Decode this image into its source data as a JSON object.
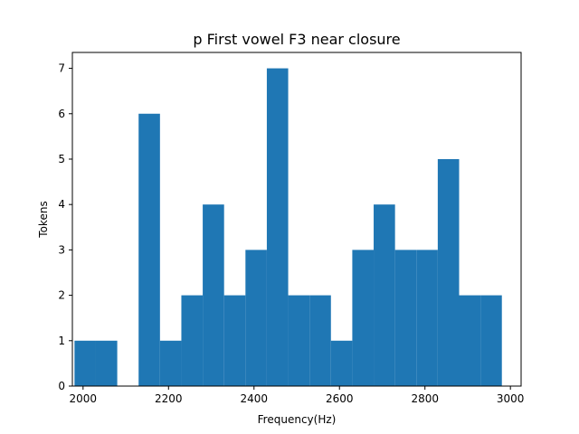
{
  "chart_data": {
    "type": "bar",
    "title": "p First vowel F3 near closure",
    "xlabel": "Frequency(Hz)",
    "ylabel": "Tokens",
    "xlim": [
      1975,
      3025
    ],
    "ylim": [
      0,
      7.35
    ],
    "x_ticks": [
      2000,
      2200,
      2400,
      2600,
      2800,
      3000
    ],
    "y_ticks": [
      0,
      1,
      2,
      3,
      4,
      5,
      6,
      7
    ],
    "bin_width": 50,
    "bins": [
      {
        "x0": 1980,
        "x1": 2030,
        "count": 1
      },
      {
        "x0": 2030,
        "x1": 2080,
        "count": 1
      },
      {
        "x0": 2080,
        "x1": 2130,
        "count": 0
      },
      {
        "x0": 2130,
        "x1": 2180,
        "count": 6
      },
      {
        "x0": 2180,
        "x1": 2230,
        "count": 1
      },
      {
        "x0": 2230,
        "x1": 2280,
        "count": 2
      },
      {
        "x0": 2280,
        "x1": 2330,
        "count": 4
      },
      {
        "x0": 2330,
        "x1": 2380,
        "count": 2
      },
      {
        "x0": 2380,
        "x1": 2430,
        "count": 3
      },
      {
        "x0": 2430,
        "x1": 2480,
        "count": 7
      },
      {
        "x0": 2480,
        "x1": 2530,
        "count": 2
      },
      {
        "x0": 2530,
        "x1": 2580,
        "count": 2
      },
      {
        "x0": 2580,
        "x1": 2630,
        "count": 1
      },
      {
        "x0": 2630,
        "x1": 2680,
        "count": 3
      },
      {
        "x0": 2680,
        "x1": 2730,
        "count": 4
      },
      {
        "x0": 2730,
        "x1": 2780,
        "count": 3
      },
      {
        "x0": 2780,
        "x1": 2830,
        "count": 3
      },
      {
        "x0": 2830,
        "x1": 2880,
        "count": 5
      },
      {
        "x0": 2880,
        "x1": 2930,
        "count": 2
      },
      {
        "x0": 2930,
        "x1": 2980,
        "count": 2
      }
    ],
    "grid": false,
    "bar_color": "#1f77b4"
  }
}
